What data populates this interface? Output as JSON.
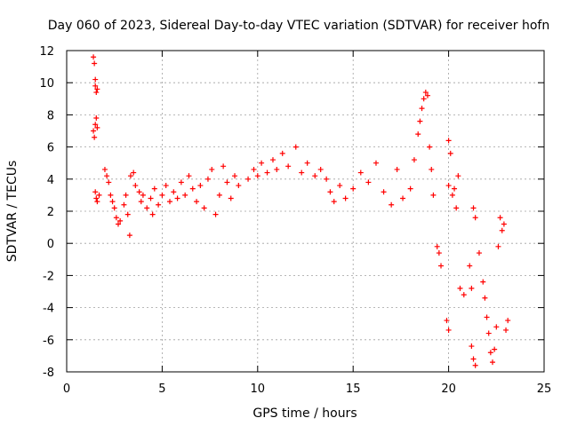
{
  "chart_data": {
    "type": "scatter",
    "title": "Day 060 of 2023, Sidereal Day-to-day VTEC variation (SDTVAR) for receiver hofn",
    "xlabel": "GPS time / hours",
    "ylabel": "SDTVAR / TECUs",
    "xlim": [
      0,
      25
    ],
    "ylim": [
      -8,
      12
    ],
    "xticks": [
      0,
      5,
      10,
      15,
      20,
      25
    ],
    "yticks": [
      -8,
      -6,
      -4,
      -2,
      0,
      2,
      4,
      6,
      8,
      10,
      12
    ],
    "grid": true,
    "marker": "+",
    "color": "#ff0000",
    "series": [
      {
        "name": "SDTVAR",
        "points": [
          [
            1.4,
            11.6
          ],
          [
            1.45,
            11.2
          ],
          [
            1.5,
            10.2
          ],
          [
            1.5,
            9.8
          ],
          [
            1.55,
            9.4
          ],
          [
            1.6,
            9.6
          ],
          [
            1.4,
            7.0
          ],
          [
            1.45,
            6.6
          ],
          [
            1.5,
            7.4
          ],
          [
            1.55,
            7.8
          ],
          [
            1.6,
            7.2
          ],
          [
            1.5,
            3.2
          ],
          [
            1.55,
            2.8
          ],
          [
            1.6,
            2.6
          ],
          [
            1.7,
            3.0
          ],
          [
            2.0,
            4.6
          ],
          [
            2.1,
            4.2
          ],
          [
            2.2,
            3.8
          ],
          [
            2.3,
            3.0
          ],
          [
            2.4,
            2.6
          ],
          [
            2.5,
            2.2
          ],
          [
            2.6,
            1.6
          ],
          [
            2.7,
            1.2
          ],
          [
            2.8,
            1.4
          ],
          [
            3.0,
            2.4
          ],
          [
            3.1,
            3.0
          ],
          [
            3.2,
            1.8
          ],
          [
            3.3,
            0.5
          ],
          [
            3.35,
            4.2
          ],
          [
            3.5,
            4.4
          ],
          [
            3.6,
            3.6
          ],
          [
            3.8,
            3.2
          ],
          [
            3.9,
            2.6
          ],
          [
            4.0,
            3.0
          ],
          [
            4.2,
            2.2
          ],
          [
            4.4,
            2.8
          ],
          [
            4.5,
            1.8
          ],
          [
            4.6,
            3.4
          ],
          [
            4.8,
            2.4
          ],
          [
            5.0,
            3.0
          ],
          [
            5.2,
            3.6
          ],
          [
            5.4,
            2.6
          ],
          [
            5.6,
            3.2
          ],
          [
            5.8,
            2.8
          ],
          [
            6.0,
            3.8
          ],
          [
            6.2,
            3.0
          ],
          [
            6.4,
            4.2
          ],
          [
            6.6,
            3.4
          ],
          [
            6.8,
            2.6
          ],
          [
            7.0,
            3.6
          ],
          [
            7.2,
            2.2
          ],
          [
            7.4,
            4.0
          ],
          [
            7.6,
            4.6
          ],
          [
            7.8,
            1.8
          ],
          [
            8.0,
            3.0
          ],
          [
            8.2,
            4.8
          ],
          [
            8.4,
            3.8
          ],
          [
            8.6,
            2.8
          ],
          [
            8.8,
            4.2
          ],
          [
            9.0,
            3.6
          ],
          [
            9.5,
            4.0
          ],
          [
            9.8,
            4.6
          ],
          [
            10.0,
            4.2
          ],
          [
            10.2,
            5.0
          ],
          [
            10.5,
            4.4
          ],
          [
            10.8,
            5.2
          ],
          [
            11.0,
            4.6
          ],
          [
            11.3,
            5.6
          ],
          [
            11.6,
            4.8
          ],
          [
            12.0,
            6.0
          ],
          [
            12.3,
            4.4
          ],
          [
            12.6,
            5.0
          ],
          [
            13.0,
            4.2
          ],
          [
            13.3,
            4.6
          ],
          [
            13.6,
            4.0
          ],
          [
            13.8,
            3.2
          ],
          [
            14.0,
            2.6
          ],
          [
            14.3,
            3.6
          ],
          [
            14.6,
            2.8
          ],
          [
            15.0,
            3.4
          ],
          [
            15.4,
            4.4
          ],
          [
            15.8,
            3.8
          ],
          [
            16.2,
            5.0
          ],
          [
            16.6,
            3.2
          ],
          [
            17.0,
            2.4
          ],
          [
            17.3,
            4.6
          ],
          [
            17.6,
            2.8
          ],
          [
            18.0,
            3.4
          ],
          [
            18.2,
            5.2
          ],
          [
            18.4,
            6.8
          ],
          [
            18.5,
            7.6
          ],
          [
            18.6,
            8.4
          ],
          [
            18.7,
            9.0
          ],
          [
            18.8,
            9.4
          ],
          [
            18.9,
            9.2
          ],
          [
            19.0,
            6.0
          ],
          [
            19.1,
            4.6
          ],
          [
            19.2,
            3.0
          ],
          [
            19.4,
            -0.2
          ],
          [
            19.5,
            -0.6
          ],
          [
            19.6,
            -1.4
          ],
          [
            19.9,
            -4.8
          ],
          [
            20.0,
            -5.4
          ],
          [
            20.0,
            6.4
          ],
          [
            20.1,
            5.6
          ],
          [
            20.0,
            3.6
          ],
          [
            20.2,
            3.0
          ],
          [
            20.3,
            3.4
          ],
          [
            20.4,
            2.2
          ],
          [
            20.5,
            4.2
          ],
          [
            20.6,
            -2.8
          ],
          [
            20.8,
            -3.2
          ],
          [
            21.1,
            -1.4
          ],
          [
            21.2,
            -2.8
          ],
          [
            21.2,
            -6.4
          ],
          [
            21.3,
            -7.2
          ],
          [
            21.4,
            -7.6
          ],
          [
            21.3,
            2.2
          ],
          [
            21.4,
            1.6
          ],
          [
            21.6,
            -0.6
          ],
          [
            21.8,
            -2.4
          ],
          [
            21.9,
            -3.4
          ],
          [
            22.0,
            -4.6
          ],
          [
            22.1,
            -5.6
          ],
          [
            22.2,
            -6.8
          ],
          [
            22.3,
            -7.4
          ],
          [
            22.4,
            -6.6
          ],
          [
            22.5,
            -5.2
          ],
          [
            22.6,
            -0.2
          ],
          [
            22.7,
            1.6
          ],
          [
            22.8,
            0.8
          ],
          [
            22.9,
            1.2
          ],
          [
            23.0,
            -5.4
          ],
          [
            23.1,
            -4.8
          ]
        ]
      }
    ]
  }
}
